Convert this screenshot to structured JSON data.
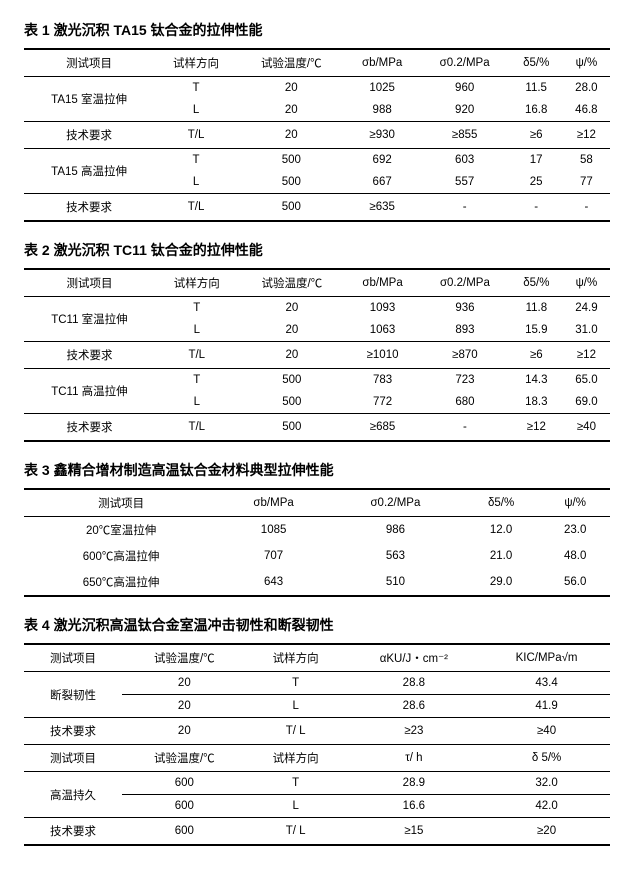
{
  "tables": {
    "t1": {
      "caption": "表 1  激光沉积 TA15 钛合金的拉伸性能",
      "headers": [
        "测试项目",
        "试样方向",
        "试验温度/℃",
        "σb/MPa",
        "σ0.2/MPa",
        "δ5/%",
        "ψ/%"
      ],
      "rows": [
        {
          "rs": 2,
          "c0": "TA15 室温拉伸",
          "c": [
            "T",
            "20",
            "1025",
            "960",
            "11.5",
            "28.0"
          ]
        },
        {
          "c": [
            "L",
            "20",
            "988",
            "920",
            "16.8",
            "46.8"
          ],
          "bot": true
        },
        {
          "c0": "技术要求",
          "c": [
            "T/L",
            "20",
            "≥930",
            "≥855",
            "≥6",
            "≥12"
          ],
          "bot": true
        },
        {
          "rs": 2,
          "c0": "TA15 高温拉伸",
          "c": [
            "T",
            "500",
            "692",
            "603",
            "17",
            "58"
          ]
        },
        {
          "c": [
            "L",
            "500",
            "667",
            "557",
            "25",
            "77"
          ],
          "bot": true
        },
        {
          "c0": "技术要求",
          "c": [
            "T/L",
            "500",
            "≥635",
            "-",
            "-",
            "-"
          ],
          "last": true
        }
      ]
    },
    "t2": {
      "caption": "表 2  激光沉积 TC11 钛合金的拉伸性能",
      "headers": [
        "测试项目",
        "试样方向",
        "试验温度/℃",
        "σb/MPa",
        "σ0.2/MPa",
        "δ5/%",
        "ψ/%"
      ],
      "rows": [
        {
          "rs": 2,
          "c0": "TC11 室温拉伸",
          "c": [
            "T",
            "20",
            "1093",
            "936",
            "11.8",
            "24.9"
          ]
        },
        {
          "c": [
            "L",
            "20",
            "1063",
            "893",
            "15.9",
            "31.0"
          ],
          "bot": true
        },
        {
          "c0": "技术要求",
          "c": [
            "T/L",
            "20",
            "≥1010",
            "≥870",
            "≥6",
            "≥12"
          ],
          "bot": true
        },
        {
          "rs": 2,
          "c0": "TC11 高温拉伸",
          "c": [
            "T",
            "500",
            "783",
            "723",
            "14.3",
            "65.0"
          ]
        },
        {
          "c": [
            "L",
            "500",
            "772",
            "680",
            "18.3",
            "69.0"
          ],
          "bot": true
        },
        {
          "c0": "技术要求",
          "c": [
            "T/L",
            "500",
            "≥685",
            "-",
            "≥12",
            "≥40"
          ],
          "last": true
        }
      ]
    },
    "t3": {
      "caption": "表 3  鑫精合增材制造高温钛合金材料典型拉伸性能",
      "headers": [
        "测试项目",
        "σb/MPa",
        "σ0.2/MPa",
        "δ5/%",
        "ψ/%"
      ],
      "rows": [
        {
          "c0": "20℃室温拉伸",
          "c": [
            "1085",
            "986",
            "12.0",
            "23.0"
          ]
        },
        {
          "c0": "600℃高温拉伸",
          "c": [
            "707",
            "563",
            "21.0",
            "48.0"
          ]
        },
        {
          "c0": "650℃高温拉伸",
          "c": [
            "643",
            "510",
            "29.0",
            "56.0"
          ],
          "last": true
        }
      ]
    },
    "t4": {
      "caption": "表 4  激光沉积高温钛合金室温冲击韧性和断裂韧性",
      "headers": [
        "测试项目",
        "试验温度/℃",
        "试样方向",
        "αKU/J・cm⁻²",
        "KIC/MPa√m"
      ],
      "rows": [
        {
          "rs": 2,
          "c0": "断裂韧性",
          "c": [
            "20",
            "T",
            "28.8",
            "43.4"
          ],
          "bot": true
        },
        {
          "c": [
            "20",
            "L",
            "28.6",
            "41.9"
          ],
          "bot": true
        },
        {
          "c0": "技术要求",
          "c": [
            "20",
            "T/ L",
            "≥23",
            "≥40"
          ],
          "bot": true
        },
        {
          "c": [
            "测试项目",
            "试验温度/℃",
            "试样方向",
            "τ/ h",
            "δ 5/%"
          ],
          "hdr": true,
          "bot": true
        },
        {
          "rs": 2,
          "c0": "高温持久",
          "c": [
            "600",
            "T",
            "28.9",
            "32.0"
          ],
          "bot": true
        },
        {
          "c": [
            "600",
            "L",
            "16.6",
            "42.0"
          ],
          "bot": true
        },
        {
          "c0": "技术要求",
          "c": [
            "600",
            "T/ L",
            "≥15",
            "≥20"
          ],
          "last": true
        }
      ]
    }
  }
}
